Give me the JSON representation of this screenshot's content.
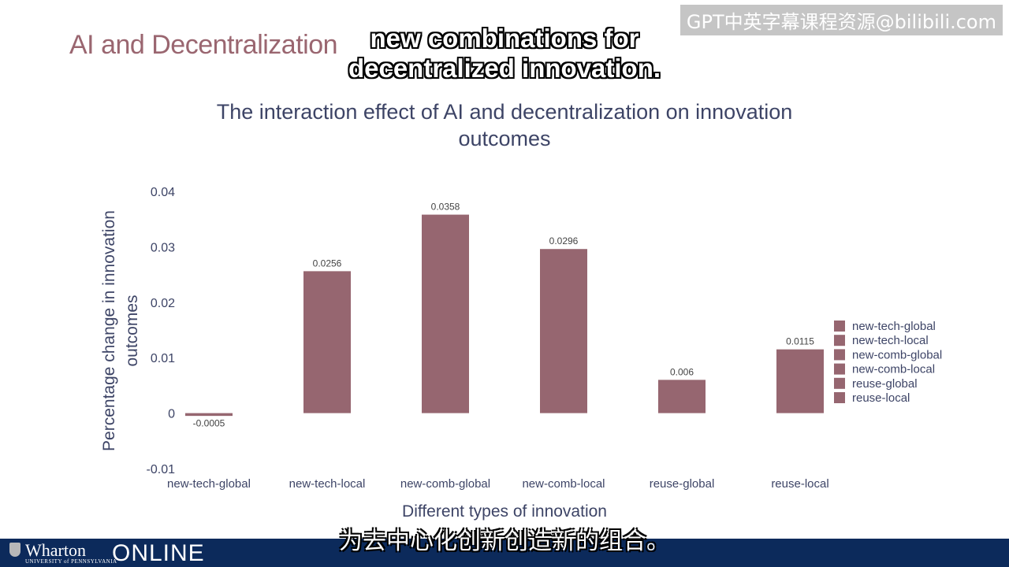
{
  "slide": {
    "title": "AI and Decentralization",
    "watermark": "GPT中英字幕课程资源@bilibili.com"
  },
  "subtitles": {
    "english_line1": "new combinations for",
    "english_line2": "decentralized innovation.",
    "chinese": "为去中心化创新创造新的组合。"
  },
  "footer": {
    "logo_text": "Wharton",
    "logo_subtext": "UNIVERSITY of PENNSYLVANIA",
    "online_text": "ONLINE"
  },
  "colors": {
    "bar": "#966670",
    "title": "#9a6670",
    "chart_text": "#3d4466",
    "footer": "#0c2a5b"
  },
  "chart_data": {
    "type": "bar",
    "title_line1": "The interaction effect of AI and decentralization on innovation",
    "title_line2": "outcomes",
    "xlabel": "Different types of innovation",
    "ylabel_line1": "Percentage change in innovation",
    "ylabel_line2": "outcomes",
    "categories": [
      "new-tech-global",
      "new-tech-local",
      "new-comb-global",
      "new-comb-local",
      "reuse-global",
      "reuse-local"
    ],
    "values": [
      -0.0005,
      0.0256,
      0.0358,
      0.0296,
      0.006,
      0.0115
    ],
    "value_labels": [
      "-0.0005",
      "0.0256",
      "0.0358",
      "0.0296",
      "0.006",
      "0.0115"
    ],
    "ylim": [
      -0.01,
      0.04
    ],
    "yticks": [
      0.04,
      0.03,
      0.02,
      0.01,
      0,
      -0.01
    ],
    "ytick_labels": [
      "0.04",
      "0.03",
      "0.02",
      "0.01",
      "0",
      "-0.01"
    ],
    "grid": false,
    "legend_position": "right",
    "legend": [
      "new-tech-global",
      "new-tech-local",
      "new-comb-global",
      "new-comb-local",
      "reuse-global",
      "reuse-local"
    ]
  }
}
